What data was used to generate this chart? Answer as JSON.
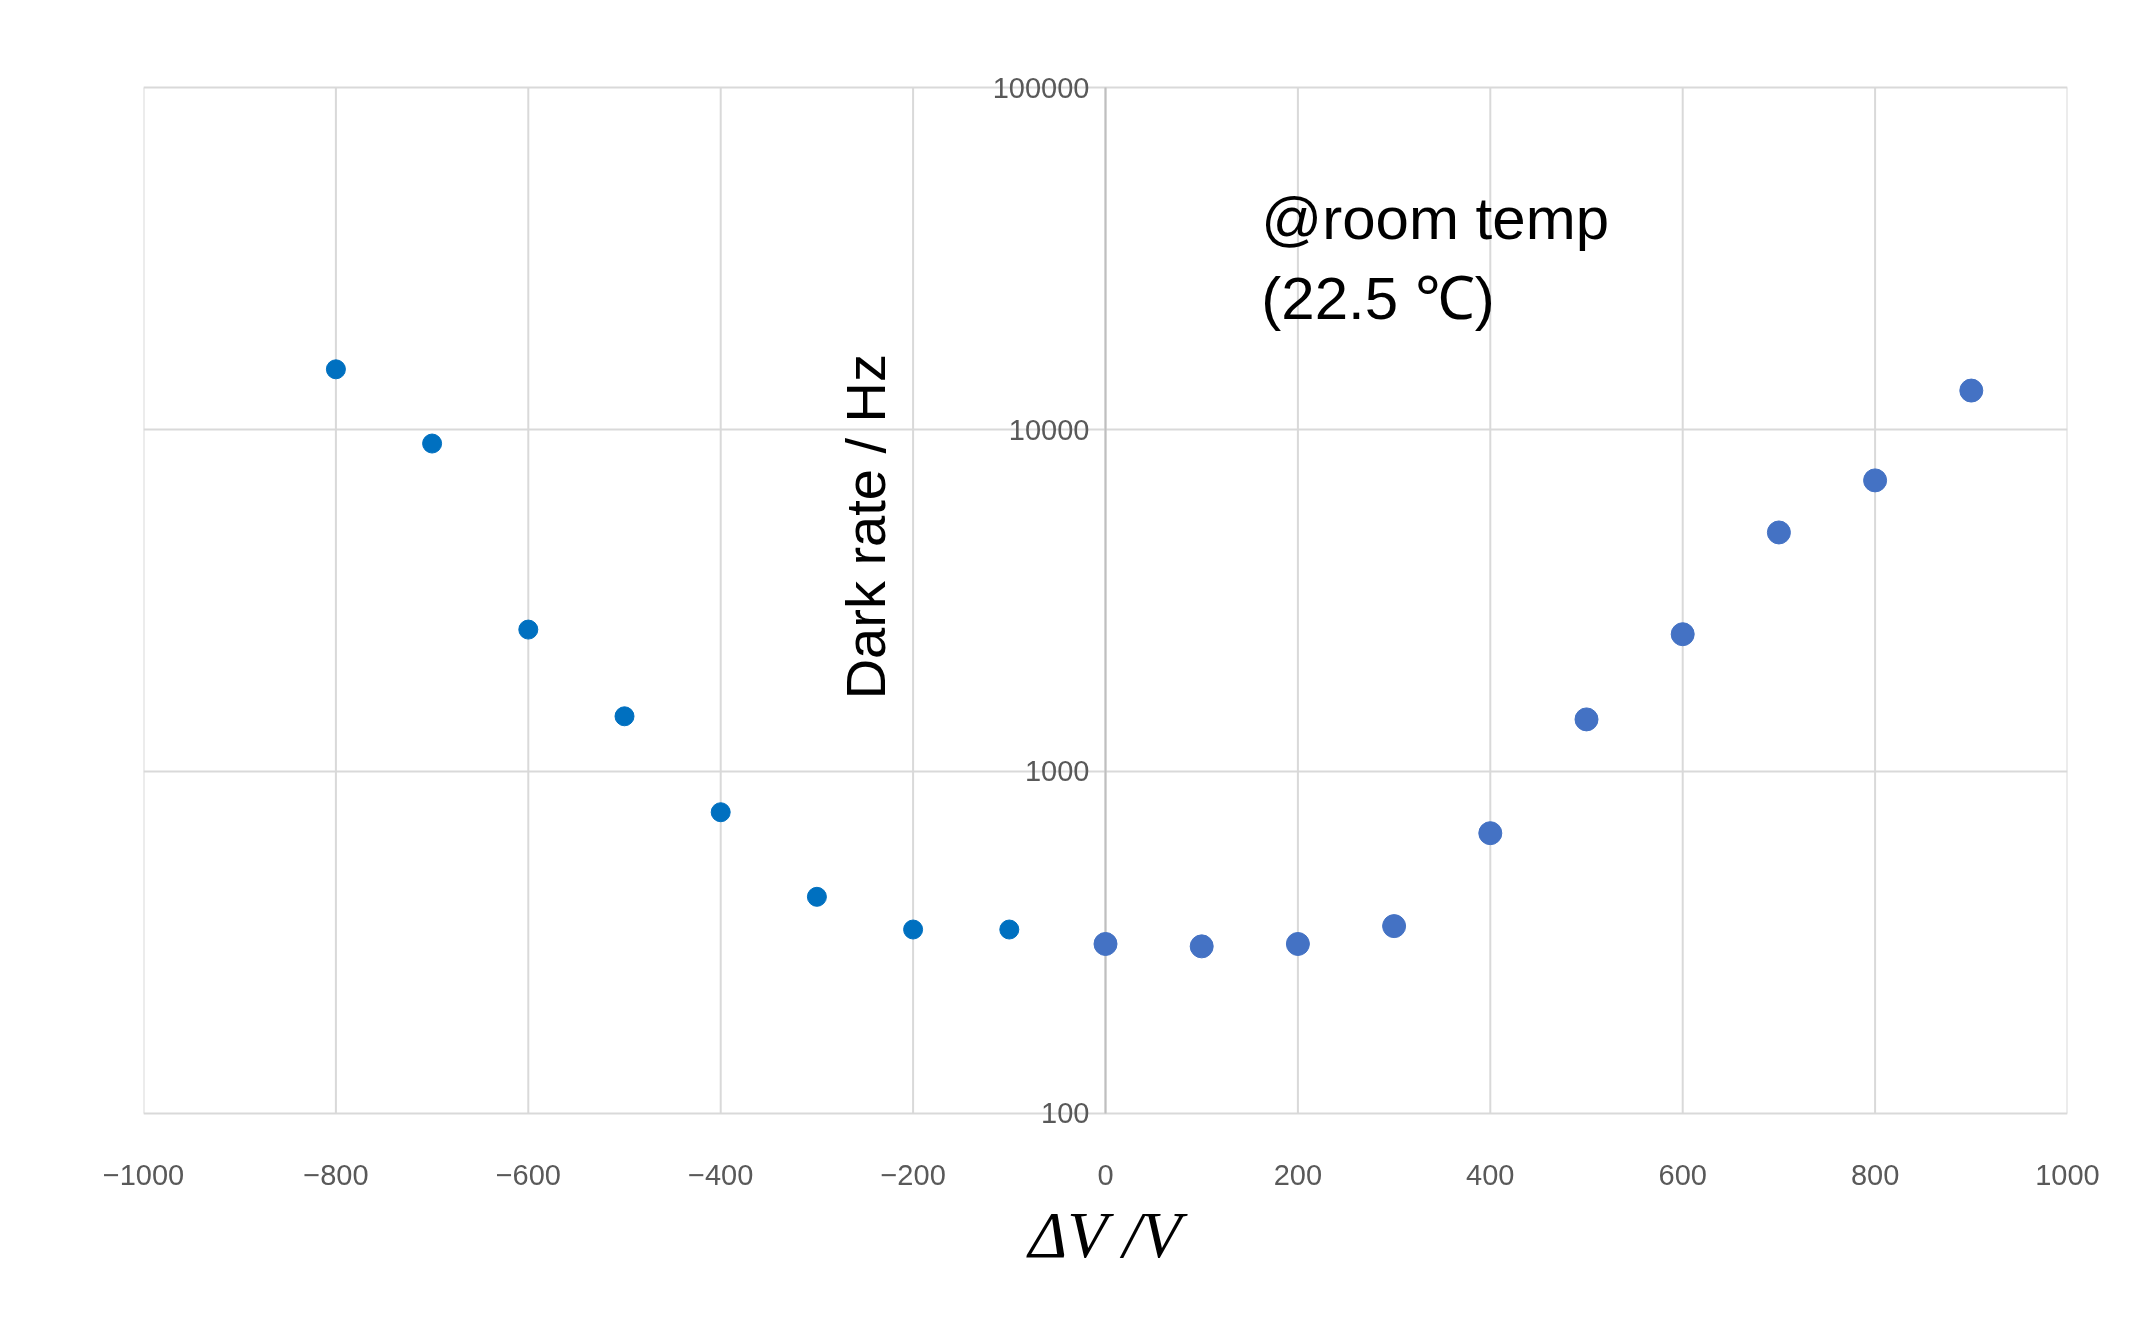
{
  "chart_data": {
    "type": "scatter",
    "xlabel": "ΔV /V",
    "ylabel": "Dark rate / Hz",
    "annotations": [
      "@room temp\n(22.5 ℃)"
    ],
    "log": "y",
    "grid": true,
    "marker": "circle",
    "xlim": [
      -1000,
      1000
    ],
    "xticks": [
      -1000,
      -800,
      -600,
      -400,
      -200,
      0,
      200,
      400,
      600,
      800,
      1000
    ],
    "ylim": [
      100,
      100000
    ],
    "yticks": [
      100,
      1000,
      10000,
      100000
    ],
    "series": [
      {
        "color": "#0070c0",
        "x": [
          -800,
          -700,
          -600,
          -500,
          -400,
          -300,
          -200,
          -100
        ],
        "values": [
          15000,
          9100,
          2600,
          1450,
          760,
          430,
          345,
          345
        ]
      },
      {
        "color": "#4472c4",
        "x": [
          0,
          100,
          200,
          300,
          400,
          500,
          600,
          700,
          800,
          900
        ],
        "values": [
          313,
          308,
          313,
          353,
          660,
          1420,
          2520,
          5000,
          7100,
          13000
        ]
      }
    ]
  }
}
